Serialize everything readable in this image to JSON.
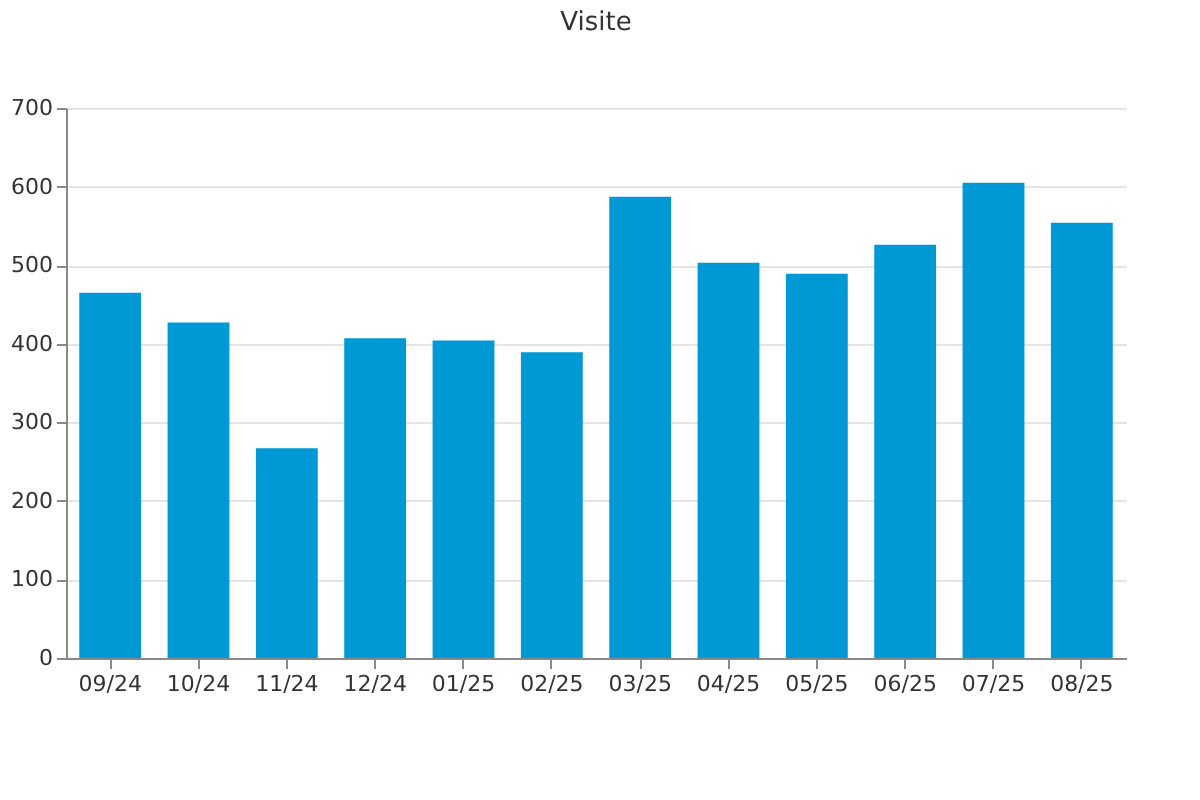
{
  "chart_data": {
    "type": "bar",
    "title": "Visite",
    "categories": [
      "09/24",
      "10/24",
      "11/24",
      "12/24",
      "01/25",
      "02/25",
      "03/25",
      "04/25",
      "05/25",
      "06/25",
      "07/25",
      "08/25"
    ],
    "series": [
      {
        "color": "#0099d6",
        "values": [
          465,
          427,
          267,
          407,
          404,
          389,
          587,
          503,
          489,
          526,
          605,
          554
        ]
      }
    ],
    "ylim": [
      0,
      700
    ],
    "yticks": [
      0,
      100,
      200,
      300,
      400,
      500,
      600,
      700
    ],
    "grid": "y"
  }
}
